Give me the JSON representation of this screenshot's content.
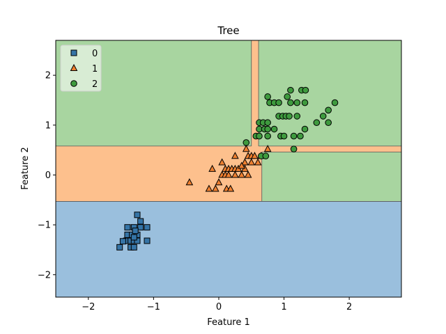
{
  "chart_data": {
    "type": "scatter",
    "title": "Tree",
    "xlabel": "Feature 1",
    "ylabel": "Feature 2",
    "xlim": [
      -2.5,
      2.8
    ],
    "ylim": [
      -2.45,
      2.7
    ],
    "xticks": [
      -2,
      -1,
      0,
      1,
      2
    ],
    "yticks": [
      -2,
      -1,
      0,
      1,
      2
    ],
    "grid": false,
    "legend_position": "top-left",
    "regions": [
      {
        "class": "2",
        "x0": -2.5,
        "x1": 2.8,
        "y0": 0.58,
        "y1": 2.7
      },
      {
        "class": "0",
        "x0": -2.5,
        "x1": 2.8,
        "y0": -2.45,
        "y1": -0.53
      },
      {
        "class": "1",
        "x0": -2.5,
        "x1": 0.66,
        "y0": -0.53,
        "y1": 0.58
      },
      {
        "class": "2",
        "x0": 0.66,
        "x1": 2.8,
        "y0": -0.53,
        "y1": 0.46
      },
      {
        "class": "1",
        "x0": 0.66,
        "x1": 2.8,
        "y0": 0.46,
        "y1": 0.58
      },
      {
        "class": "1",
        "x0": 0.5,
        "x1": 0.61,
        "y0": 0.58,
        "y1": 2.7
      }
    ],
    "boundaries": [
      [
        [
          -2.5,
          0.58
        ],
        [
          0.5,
          0.58
        ]
      ],
      [
        [
          0.5,
          0.58
        ],
        [
          0.5,
          2.7
        ]
      ],
      [
        [
          0.61,
          0.58
        ],
        [
          0.61,
          2.7
        ]
      ],
      [
        [
          0.61,
          0.58
        ],
        [
          2.8,
          0.58
        ]
      ],
      [
        [
          0.66,
          0.46
        ],
        [
          2.8,
          0.46
        ]
      ],
      [
        [
          0.66,
          -0.53
        ],
        [
          0.66,
          0.46
        ]
      ],
      [
        [
          -2.5,
          -0.53
        ],
        [
          2.8,
          -0.53
        ]
      ]
    ],
    "series": [
      {
        "name": "0",
        "marker": "square",
        "color": "#3574a6",
        "points": [
          [
            -1.25,
            -0.8
          ],
          [
            -1.2,
            -0.93
          ],
          [
            -1.4,
            -1.05
          ],
          [
            -1.3,
            -1.05
          ],
          [
            -1.2,
            -1.05
          ],
          [
            -1.1,
            -1.05
          ],
          [
            -1.4,
            -1.2
          ],
          [
            -1.33,
            -1.2
          ],
          [
            -1.25,
            -1.2
          ],
          [
            -1.42,
            -1.32
          ],
          [
            -1.35,
            -1.32
          ],
          [
            -1.3,
            -1.32
          ],
          [
            -1.25,
            -1.32
          ],
          [
            -1.47,
            -1.33
          ],
          [
            -1.1,
            -1.32
          ],
          [
            -1.52,
            -1.45
          ],
          [
            -1.35,
            -1.45
          ],
          [
            -1.3,
            -1.45
          ],
          [
            -1.3,
            -1.25
          ],
          [
            -1.28,
            -1.12
          ]
        ]
      },
      {
        "name": "1",
        "marker": "triangle",
        "color": "#ef7f2f",
        "points": [
          [
            -0.45,
            -0.15
          ],
          [
            -0.15,
            -0.28
          ],
          [
            -0.05,
            -0.28
          ],
          [
            0.12,
            -0.28
          ],
          [
            0.18,
            -0.28
          ],
          [
            0.0,
            -0.15
          ],
          [
            -0.1,
            0.12
          ],
          [
            0.05,
            0.0
          ],
          [
            0.1,
            0.0
          ],
          [
            0.15,
            0.0
          ],
          [
            0.25,
            0.0
          ],
          [
            0.35,
            0.0
          ],
          [
            0.45,
            0.0
          ],
          [
            0.05,
            0.25
          ],
          [
            0.1,
            0.12
          ],
          [
            0.15,
            0.12
          ],
          [
            0.2,
            0.12
          ],
          [
            0.25,
            0.12
          ],
          [
            0.3,
            0.12
          ],
          [
            0.4,
            0.12
          ],
          [
            0.25,
            0.38
          ],
          [
            0.4,
            0.25
          ],
          [
            0.5,
            0.25
          ],
          [
            0.6,
            0.25
          ],
          [
            0.45,
            0.38
          ],
          [
            0.5,
            0.38
          ],
          [
            0.55,
            0.38
          ],
          [
            0.65,
            0.38
          ],
          [
            0.42,
            0.52
          ],
          [
            0.75,
            0.52
          ],
          [
            0.35,
            0.18
          ]
        ]
      },
      {
        "name": "2",
        "marker": "circle",
        "color": "#3e9a3e",
        "points": [
          [
            0.42,
            0.65
          ],
          [
            0.57,
            0.78
          ],
          [
            0.62,
            0.78
          ],
          [
            0.75,
            0.78
          ],
          [
            0.95,
            0.78
          ],
          [
            1.0,
            0.78
          ],
          [
            1.15,
            0.78
          ],
          [
            1.25,
            0.78
          ],
          [
            1.15,
            0.52
          ],
          [
            0.65,
            0.38
          ],
          [
            0.72,
            0.38
          ],
          [
            0.62,
            0.92
          ],
          [
            0.7,
            0.92
          ],
          [
            0.75,
            0.92
          ],
          [
            0.85,
            0.92
          ],
          [
            1.32,
            0.92
          ],
          [
            0.62,
            1.05
          ],
          [
            0.68,
            1.05
          ],
          [
            0.75,
            1.05
          ],
          [
            0.92,
            1.18
          ],
          [
            0.98,
            1.18
          ],
          [
            1.03,
            1.18
          ],
          [
            1.08,
            1.18
          ],
          [
            1.2,
            1.18
          ],
          [
            0.78,
            1.45
          ],
          [
            0.85,
            1.45
          ],
          [
            0.92,
            1.45
          ],
          [
            1.1,
            1.45
          ],
          [
            1.2,
            1.45
          ],
          [
            1.32,
            1.45
          ],
          [
            0.75,
            1.57
          ],
          [
            1.05,
            1.57
          ],
          [
            1.1,
            1.7
          ],
          [
            1.27,
            1.7
          ],
          [
            1.33,
            1.7
          ],
          [
            1.5,
            1.05
          ],
          [
            1.68,
            1.05
          ],
          [
            1.6,
            1.18
          ],
          [
            1.68,
            1.3
          ],
          [
            1.78,
            1.45
          ]
        ]
      }
    ],
    "class_colors": {
      "0": "#9abfdd",
      "1": "#fdc08d",
      "2": "#a8d5a0"
    }
  }
}
